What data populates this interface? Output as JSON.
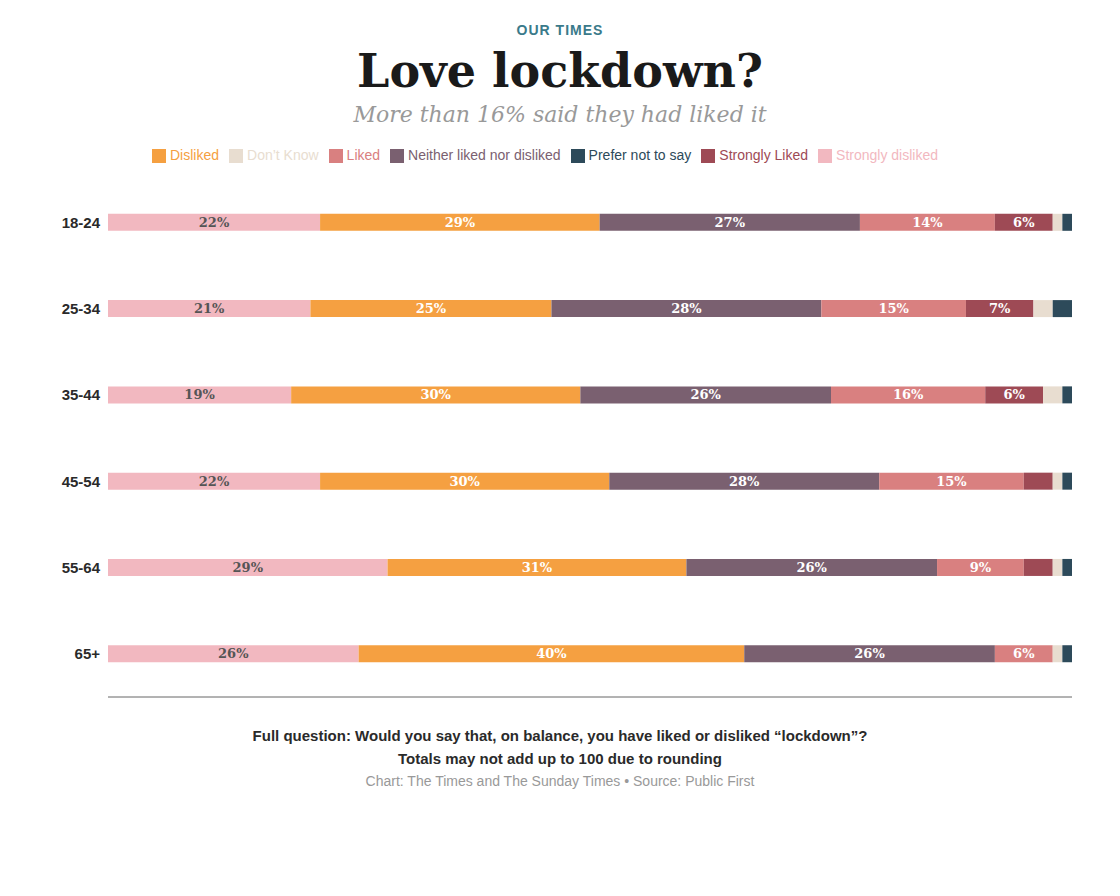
{
  "chart_data": {
    "type": "bar",
    "orientation": "horizontal",
    "stacked": true,
    "data_labels": true,
    "tick_labels": "y",
    "legend": "top",
    "kicker": "OUR TIMES",
    "title": "Love lockdown?",
    "subtitle": "More than 16% said they had liked it",
    "footnotes": [
      "Full question: Would you say that, on balance, you have liked or disliked “lockdown”?",
      "Totals may not add up to 100 due to rounding",
      "Chart: The Times and The Sunday Times • Source: Public First"
    ],
    "categories": [
      "18-24",
      "25-34",
      "35-44",
      "45-54",
      "55-64",
      "65+"
    ],
    "xlim": [
      0,
      100
    ],
    "series": [
      {
        "name": "Strongly disliked",
        "color": "#f2b8c0",
        "values": [
          22,
          21,
          19,
          22,
          29,
          26
        ],
        "value_labels": [
          "22%",
          "21%",
          "19%",
          "22%",
          "29%",
          "26%"
        ]
      },
      {
        "name": "Disliked",
        "color": "#f5a041",
        "values": [
          29,
          25,
          30,
          30,
          31,
          40
        ],
        "value_labels": [
          "29%",
          "25%",
          "30%",
          "30%",
          "31%",
          "40%"
        ]
      },
      {
        "name": "Neither liked nor disliked",
        "color": "#7a6070",
        "values": [
          27,
          28,
          26,
          28,
          26,
          26
        ],
        "value_labels": [
          "27%",
          "28%",
          "26%",
          "28%",
          "26%",
          "26%"
        ]
      },
      {
        "name": "Liked",
        "color": "#d98080",
        "values": [
          14,
          15,
          16,
          15,
          9,
          6
        ],
        "value_labels": [
          "14%",
          "15%",
          "16%",
          "15%",
          "9%",
          "6%"
        ]
      },
      {
        "name": "Strongly Liked",
        "color": "#9e4a55",
        "values": [
          6,
          7,
          6,
          3,
          3,
          0
        ],
        "value_labels": [
          "6%",
          "7%",
          "6%",
          null,
          null,
          null
        ]
      },
      {
        "name": "Don’t Know",
        "color": "#e8ddd0",
        "values": [
          1,
          2,
          2,
          1,
          1,
          1
        ],
        "value_labels": [
          null,
          null,
          null,
          null,
          null,
          null
        ]
      },
      {
        "name": "Prefer not to say",
        "color": "#2d4a5a",
        "values": [
          1,
          2,
          1,
          1,
          1,
          1
        ],
        "value_labels": [
          null,
          null,
          null,
          null,
          null,
          null
        ]
      }
    ]
  }
}
